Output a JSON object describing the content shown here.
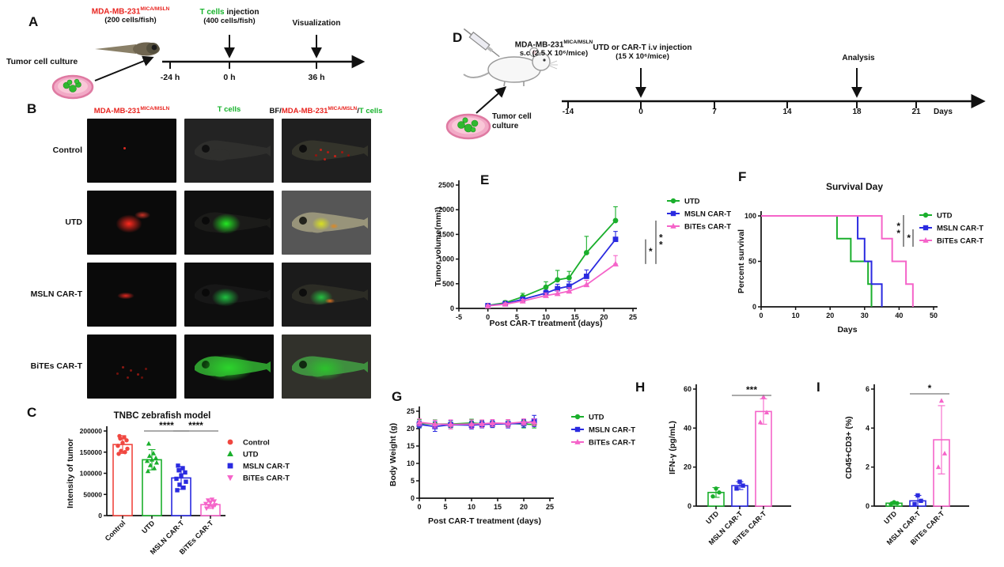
{
  "colors": {
    "control_red": "#f04740",
    "utd_green": "#1aaf2c",
    "msln_blue": "#2a2ae0",
    "bites_pink": "#f564c9",
    "label_red": "#e8241f",
    "label_green": "#17b32c",
    "axis_black": "#111111"
  },
  "panels": {
    "a": {
      "label": "A",
      "cell_line_base": "MDA-MB-231",
      "cell_line_sup": "MICA/MSLN",
      "cell_amount": "(200 cells/fish)",
      "tcells": "T cells",
      "injection_rest": " injection",
      "tcell_amount": "(400 cells/fish)",
      "visualization": "Visualization",
      "culture": "Tumor cell culture",
      "t1": "-24 h",
      "t2": "0 h",
      "t3": "36 h"
    },
    "b": {
      "label": "B",
      "col1_base": "MDA-MB-231",
      "col1_sup": "MICA/MSLN",
      "col2": "T cells",
      "col3_prefix": "BF/",
      "col3_base": "MDA-MB-231",
      "col3_sup": "MICA/MSLN",
      "col3_slash": "/",
      "col3_tcells": "T cells",
      "rows": [
        "Control",
        "UTD",
        "MSLN CAR-T",
        "BiTEs CAR-T"
      ]
    },
    "c": {
      "label": "C"
    },
    "d": {
      "label": "D",
      "cell_line_base": "MDA-MB-231",
      "cell_line_sup": "MICA/MSLN",
      "sc": "s.c (2.5 X 10⁶/mice)",
      "injection_line1": "UTD or CAR-T i.v injection",
      "injection_line2": "(15 X 10⁶/mice)",
      "analysis": "Analysis",
      "culture_line1": "Tumor cell",
      "culture_line2": "culture",
      "ticks": [
        "-14",
        "0",
        "7",
        "14",
        "18",
        "21"
      ],
      "days": "Days"
    },
    "e": {
      "label": "E"
    },
    "f": {
      "label": "F"
    },
    "g": {
      "label": "G"
    },
    "h": {
      "label": "H"
    },
    "i": {
      "label": "I"
    }
  },
  "chart_data": [
    {
      "id": "C",
      "type": "bar",
      "title": "TNBC zebrafish model",
      "ylabel": "Intensity of tumor",
      "categories": [
        "Control",
        "UTD",
        "MSLN CAR-T",
        "BiTEs CAR-T"
      ],
      "means": [
        168000,
        132000,
        89000,
        26000
      ],
      "errors": [
        21000,
        24000,
        27000,
        9000
      ],
      "points": [
        [
          146000,
          150000,
          153000,
          158000,
          165000,
          172000,
          178000,
          182000,
          185000,
          188000
        ],
        [
          105000,
          112000,
          119000,
          125000,
          129000,
          132000,
          136000,
          141000,
          147000,
          170000
        ],
        [
          60000,
          66000,
          73000,
          80000,
          87000,
          95000,
          102000,
          107000,
          112000,
          118000
        ],
        [
          17000,
          20000,
          23000,
          25000,
          28000,
          31000,
          34000,
          36000,
          38000
        ]
      ],
      "colors": [
        "#f04740",
        "#1aaf2c",
        "#2a2ae0",
        "#f564c9"
      ],
      "markers": [
        "circle",
        "triangle-up",
        "square",
        "triangle-down"
      ],
      "ylim": [
        0,
        200000
      ],
      "yticks": [
        0,
        50000,
        100000,
        150000,
        200000
      ],
      "legend": [
        "Control",
        "UTD",
        "MSLN CAR-T",
        "BiTEs CAR-T"
      ],
      "significance": [
        {
          "pair": "UTD vs MSLN CAR-T",
          "label": "****"
        },
        {
          "pair": "MSLN CAR-T vs BiTEs CAR-T",
          "label": "****"
        }
      ]
    },
    {
      "id": "E",
      "type": "line",
      "xlabel": "Post CAR-T treatment (days)",
      "ylabel": "Tumor volume(mm³)",
      "x": [
        0,
        3,
        6,
        10,
        12,
        14,
        17,
        22
      ],
      "series": [
        {
          "name": "UTD",
          "color": "#1aaf2c",
          "marker": "circle",
          "values": [
            60,
            115,
            235,
            430,
            580,
            620,
            1130,
            1780
          ],
          "errors": [
            25,
            40,
            70,
            110,
            190,
            130,
            330,
            280
          ]
        },
        {
          "name": "MSLN CAR-T",
          "color": "#2a2ae0",
          "marker": "square",
          "values": [
            55,
            95,
            185,
            310,
            400,
            450,
            650,
            1400
          ],
          "errors": [
            20,
            30,
            45,
            60,
            90,
            95,
            130,
            160
          ]
        },
        {
          "name": "BiTEs CAR-T",
          "color": "#f564c9",
          "marker": "triangle-up",
          "values": [
            50,
            85,
            150,
            260,
            300,
            350,
            480,
            900
          ],
          "errors": [
            18,
            25,
            35,
            50,
            60,
            70,
            90,
            170
          ]
        }
      ],
      "xlim": [
        -5,
        25
      ],
      "xticks": [
        -5,
        0,
        5,
        10,
        15,
        20,
        25
      ],
      "ylim": [
        0,
        2500
      ],
      "yticks": [
        0,
        500,
        1000,
        1500,
        2000,
        2500
      ],
      "significance": [
        {
          "pair": "MSLN CAR-T vs BiTEs CAR-T",
          "label": "*"
        },
        {
          "pair": "UTD vs BiTEs CAR-T",
          "label": "**"
        }
      ]
    },
    {
      "id": "F",
      "type": "survival",
      "title": "Survival Day",
      "xlabel": "Days",
      "ylabel": "Percent survival",
      "series": [
        {
          "name": "UTD",
          "color": "#1aaf2c",
          "marker": "circle",
          "steps": [
            [
              0,
              100
            ],
            [
              22,
              100
            ],
            [
              22,
              75
            ],
            [
              26,
              75
            ],
            [
              26,
              50
            ],
            [
              31,
              50
            ],
            [
              31,
              25
            ],
            [
              32,
              25
            ],
            [
              32,
              0
            ]
          ]
        },
        {
          "name": "MSLN CAR-T",
          "color": "#2a2ae0",
          "marker": "square",
          "steps": [
            [
              0,
              100
            ],
            [
              28,
              100
            ],
            [
              28,
              75
            ],
            [
              30,
              75
            ],
            [
              30,
              50
            ],
            [
              32,
              50
            ],
            [
              32,
              25
            ],
            [
              35,
              25
            ],
            [
              35,
              0
            ]
          ]
        },
        {
          "name": "BiTEs CAR-T",
          "color": "#f564c9",
          "marker": "triangle-up",
          "steps": [
            [
              0,
              100
            ],
            [
              35,
              100
            ],
            [
              35,
              75
            ],
            [
              38,
              75
            ],
            [
              38,
              50
            ],
            [
              42,
              50
            ],
            [
              42,
              25
            ],
            [
              44,
              25
            ],
            [
              44,
              0
            ]
          ]
        }
      ],
      "xlim": [
        0,
        50
      ],
      "xticks": [
        0,
        10,
        20,
        30,
        40,
        50
      ],
      "ylim": [
        0,
        100
      ],
      "yticks": [
        0,
        50,
        100
      ],
      "significance": [
        {
          "pair": "UTD vs BiTEs CAR-T",
          "label": "**"
        },
        {
          "pair": "MSLN CAR-T vs BiTEs CAR-T",
          "label": "*"
        }
      ]
    },
    {
      "id": "G",
      "type": "line",
      "xlabel": "Post CAR-T treatment (days)",
      "ylabel": "Body Weight (g)",
      "x": [
        0,
        3,
        6,
        10,
        12,
        14,
        17,
        20,
        22
      ],
      "series": [
        {
          "name": "UTD",
          "color": "#1aaf2c",
          "marker": "circle",
          "values": [
            21.5,
            21.3,
            21.3,
            21.6,
            21.4,
            21.3,
            21.5,
            21.3,
            21.2
          ],
          "errors": [
            1.1,
            1.2,
            1.0,
            1.1,
            1.0,
            0.9,
            1.0,
            1.1,
            1.0
          ]
        },
        {
          "name": "MSLN CAR-T",
          "color": "#2a2ae0",
          "marker": "square",
          "values": [
            21.2,
            20.6,
            21.1,
            21.0,
            21.2,
            21.3,
            21.4,
            21.5,
            22.2
          ],
          "errors": [
            1.0,
            1.4,
            1.2,
            1.1,
            1.0,
            1.0,
            1.2,
            1.1,
            1.6
          ]
        },
        {
          "name": "BiTEs CAR-T",
          "color": "#f564c9",
          "marker": "triangle-up",
          "values": [
            21.8,
            21.3,
            21.2,
            21.3,
            21.4,
            21.6,
            21.5,
            21.9,
            21.8
          ],
          "errors": [
            1.0,
            1.1,
            1.3,
            1.2,
            1.1,
            1.0,
            1.1,
            0.9,
            1.0
          ]
        }
      ],
      "xlim": [
        0,
        25
      ],
      "xticks": [
        0,
        5,
        10,
        15,
        20,
        25
      ],
      "ylim": [
        0,
        25
      ],
      "yticks": [
        0,
        5,
        10,
        15,
        20,
        25
      ]
    },
    {
      "id": "H",
      "type": "bar",
      "ylabel": "IFN-γ (pg/mL)",
      "categories": [
        "UTD",
        "MSLN CAR-T",
        "BiTEs CAR-T"
      ],
      "means": [
        7,
        10.5,
        48.5
      ],
      "errors": [
        2.5,
        2,
        6.5
      ],
      "points": [
        [
          5,
          7,
          9
        ],
        [
          9,
          10.5,
          12.5
        ],
        [
          43,
          48,
          56
        ]
      ],
      "colors": [
        "#1aaf2c",
        "#2a2ae0",
        "#f564c9"
      ],
      "markers": [
        "circle",
        "square",
        "triangle-up"
      ],
      "ylim": [
        0,
        60
      ],
      "yticks": [
        0,
        20,
        40,
        60
      ],
      "significance": [
        {
          "pair": "MSLN CAR-T vs BiTEs CAR-T",
          "label": "***"
        }
      ]
    },
    {
      "id": "I",
      "type": "bar",
      "ylabel": "CD45+CD3+ (%)",
      "categories": [
        "UTD",
        "MSLN CAR-T",
        "BiTEs CAR-T"
      ],
      "means": [
        0.15,
        0.27,
        3.4
      ],
      "errors": [
        0.07,
        0.28,
        1.75
      ],
      "points": [
        [
          0.1,
          0.15,
          0.2
        ],
        [
          0.1,
          0.27,
          0.55
        ],
        [
          2.0,
          2.7,
          5.4
        ]
      ],
      "colors": [
        "#1aaf2c",
        "#2a2ae0",
        "#f564c9"
      ],
      "markers": [
        "circle",
        "square",
        "triangle-up"
      ],
      "ylim": [
        0,
        6
      ],
      "yticks": [
        0,
        2,
        4,
        6
      ],
      "significance": [
        {
          "pair": "MSLN CAR-T vs BiTEs CAR-T",
          "label": "*"
        }
      ]
    }
  ]
}
